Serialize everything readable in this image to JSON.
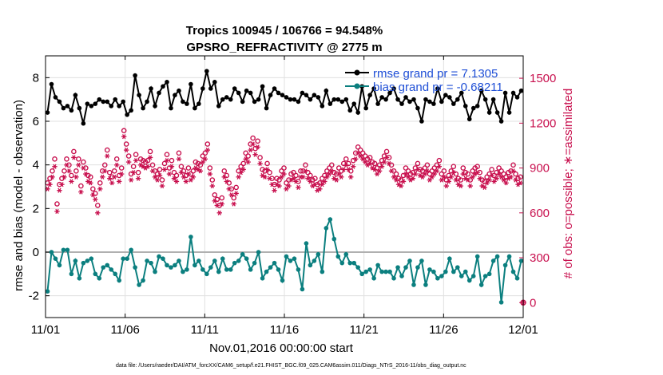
{
  "chart_data": {
    "type": "line",
    "title": "Tropics 100945 / 106766 = 94.548%",
    "subtitle": "GPSRO_REFRACTIVITY @ 2775 m",
    "xlabel": "Nov.01,2016 00:00:00 start",
    "ylabel": "rmse and bias (model - observation)",
    "y2label": "# of obs: o=possible; ∗=assimilated",
    "footnote": "data file: /Users/raeder/DAI/ATM_forcXX/CAM6_setup/f.e21.FHIST_BGC.f09_025.CAM6assim.011/Diags_NTrS_2016-11/obs_diag_output.nc",
    "xlim": [
      0,
      30
    ],
    "ylim": [
      -3,
      9
    ],
    "y2lim": [
      -100,
      1650
    ],
    "xticks": [
      0,
      5,
      10,
      15,
      20,
      25,
      30
    ],
    "xtick_labels": [
      "11/01",
      "11/06",
      "11/11",
      "11/16",
      "11/21",
      "11/26",
      "12/01"
    ],
    "yticks": [
      -2,
      0,
      2,
      4,
      6,
      8
    ],
    "ytick_labels": [
      "-2",
      "0",
      "2",
      "4",
      "6",
      "8"
    ],
    "y2ticks": [
      0,
      300,
      600,
      900,
      1200,
      1500
    ],
    "y2tick_labels": [
      "0",
      "300",
      "600",
      "900",
      "1200",
      "1500"
    ],
    "legend_position": "top-right",
    "colors": {
      "rmse": "#000000",
      "bias": "#0b7f7f",
      "obs": "#c8104e",
      "zero_line": "#b0b0b0",
      "grid": "#e0e0e0",
      "legend_text": "#1f4fd6"
    },
    "series": [
      {
        "name": "rmse grand pr = 7.1305",
        "axis": "left",
        "style": "line-marker",
        "values": [
          6.4,
          7.7,
          7.1,
          6.9,
          6.6,
          6.7,
          6.5,
          7.2,
          6.6,
          5.9,
          6.8,
          6.7,
          6.8,
          7.0,
          6.9,
          6.9,
          6.7,
          7.0,
          6.7,
          6.9,
          6.3,
          6.5,
          8.1,
          7.2,
          6.6,
          6.9,
          7.5,
          6.7,
          7.3,
          7.6,
          7.8,
          6.6,
          7.2,
          7.4,
          6.9,
          6.8,
          7.7,
          6.6,
          6.8,
          7.5,
          8.3,
          7.5,
          7.8,
          6.7,
          7.0,
          7.1,
          7.0,
          7.5,
          7.3,
          6.9,
          7.4,
          7.3,
          6.9,
          7.0,
          7.6,
          6.6,
          7.2,
          7.5,
          7.3,
          7.2,
          7.1,
          7.0,
          7.0,
          6.9,
          7.3,
          7.2,
          7.0,
          7.2,
          7.1,
          6.7,
          7.4,
          6.8,
          7.0,
          7.0,
          6.9,
          7.0,
          6.5,
          6.8,
          6.4,
          7.6,
          6.6,
          7.2,
          7.5,
          6.8,
          7.1,
          7.0,
          7.3,
          7.5,
          7.0,
          6.8,
          7.1,
          6.9,
          7.0,
          6.6,
          6.0,
          7.0,
          6.9,
          6.8,
          7.5,
          6.9,
          7.2,
          7.1,
          6.8,
          7.0,
          7.3,
          6.7,
          6.1,
          6.6,
          6.7,
          7.4,
          7.0,
          6.4,
          7.0,
          6.4,
          6.0,
          7.3,
          6.4,
          7.3,
          7.1,
          7.4,
          6.9,
          7.5,
          7.3,
          7.4,
          7.1,
          6.8,
          7.3,
          7.6,
          7.2,
          7.3,
          7.0,
          6.9,
          7.1,
          7.3,
          6.8,
          7.0,
          7.2,
          7.4,
          6.9,
          7.2,
          7.1,
          6.5,
          6.9,
          6.6,
          6.7,
          7.1,
          7.0,
          6.8,
          6.4,
          7.1,
          7.5,
          6.5,
          6.9,
          6.5,
          7.1,
          7.4,
          7.0,
          6.8,
          6.9,
          7.0,
          7.2,
          6.7,
          7.2,
          7.3,
          6.8,
          6.7,
          7.1,
          7.3,
          6.4,
          7.2,
          6.6,
          6.9,
          8.0,
          7.3,
          7.2,
          7.3,
          7.1,
          6.4,
          6.6,
          6.5,
          7.3,
          6.8,
          7.1,
          6.8,
          7.4,
          6.5,
          7.0,
          6.9,
          7.2,
          6.7,
          7.0,
          6.5,
          6.4,
          6.9,
          7.3,
          6.6,
          7.1,
          6.7,
          8.0,
          7.2,
          7.0,
          7.2,
          7.2,
          6.9,
          7.5,
          6.7,
          7.4,
          7.0,
          7.2,
          7.3,
          6.6,
          7.2,
          6.8,
          6.6,
          7.0,
          7.4,
          7.1,
          7.3,
          7.9,
          7.2
        ],
        "x_step": 0.25
      },
      {
        "name": "bias grand pr = -0.68211",
        "axis": "left",
        "style": "line-marker",
        "values": [
          -1.8,
          0.0,
          -0.3,
          -0.6,
          0.1,
          0.1,
          -1.0,
          -0.4,
          -1.2,
          -0.5,
          -0.4,
          -0.3,
          -1.0,
          -1.2,
          -0.7,
          -0.6,
          -0.8,
          -1.0,
          -1.3,
          -0.3,
          -0.3,
          0.1,
          -0.7,
          -1.5,
          -1.3,
          -0.4,
          -0.5,
          -0.9,
          -0.2,
          -0.3,
          -0.6,
          -0.7,
          -0.6,
          -0.4,
          -0.9,
          -0.8,
          0.7,
          -0.6,
          -0.4,
          -0.8,
          -1.0,
          -0.7,
          -0.4,
          -0.9,
          -0.3,
          -0.8,
          -0.8,
          -0.5,
          -0.4,
          -0.1,
          -0.3,
          -0.8,
          -0.5,
          0.0,
          -1.2,
          -0.9,
          -0.7,
          -0.5,
          -0.8,
          -1.3,
          -0.2,
          -0.4,
          -0.3,
          -0.8,
          -1.7,
          0.4,
          -0.6,
          -0.4,
          -0.1,
          -0.9,
          1.1,
          1.5,
          0.6,
          -0.2,
          -0.5,
          -0.1,
          -0.5,
          -0.5,
          -0.7,
          -1.0,
          -0.9,
          -0.8,
          -1.2,
          -0.6,
          -0.9,
          -0.9,
          -0.9,
          -1.2,
          -0.7,
          -1.1,
          -0.7,
          -0.4,
          -1.5,
          -0.7,
          -0.4,
          -1.5,
          -0.8,
          -0.9,
          -1.2,
          -1.1,
          -0.9,
          -0.3,
          -0.9,
          -0.7,
          -1.1,
          -0.9,
          -1.3,
          -1.1,
          -0.2,
          -1.5,
          -1.1,
          -1.0,
          -0.4,
          -0.2,
          -2.3,
          -0.6,
          -0.2,
          -0.9,
          -1.2,
          -0.4,
          -0.7,
          -0.8,
          -2.4,
          -0.6,
          -0.2,
          -0.4,
          -0.8,
          -0.5,
          -0.7,
          -0.9,
          -0.8,
          -1.5,
          -0.1,
          -0.6,
          -0.4,
          -0.8,
          -0.9,
          -0.7,
          -0.2,
          -1.2,
          -0.3,
          -0.4,
          -0.7,
          -0.6,
          -0.9,
          -0.4,
          -1.6,
          -0.6,
          -0.5,
          -0.4,
          -0.8,
          -0.6,
          -0.9,
          -1.2,
          -1.5,
          -1.0,
          -2.3,
          -1.2,
          -0.8,
          -1.5,
          -0.2,
          -0.8,
          -1.0,
          -0.5,
          -0.7,
          -0.3,
          -1.1,
          -0.9,
          -0.6,
          -0.7,
          -0.4,
          -0.5,
          -1.0,
          -0.3,
          -0.8,
          -0.5,
          -1.3,
          -1.0,
          -0.9,
          -1.0,
          -0.3,
          -0.7,
          -1.2,
          -0.4,
          -0.6,
          -0.9,
          -0.6,
          -1.5,
          -0.3,
          -0.1,
          -0.8,
          -0.9,
          0.2,
          -0.6,
          -0.3,
          -0.9,
          -1.0,
          -0.4,
          -0.4,
          -0.9,
          -0.1,
          -0.3,
          0.0,
          0.8,
          -0.3,
          -0.5,
          -0.2,
          -0.1,
          0.0,
          -0.6,
          -0.3,
          -0.6,
          -0.7,
          -0.9,
          -0.4,
          -0.8,
          -1.0,
          -0.5,
          -0.8,
          -0.9,
          -0.7,
          -0.1
        ],
        "x_step": 0.25
      },
      {
        "name": "obs possible",
        "axis": "right",
        "style": "marker-o",
        "x_step": 0.25,
        "values": [
          800,
          830,
          880,
          960,
          660,
          790,
          830,
          880,
          960,
          920,
          850,
          1010,
          880,
          960,
          780,
          940,
          900,
          850,
          840,
          760,
          730,
          650,
          800,
          880,
          920,
          1020,
          870,
          840,
          880,
          960,
          850,
          900,
          1150,
          1060,
          980,
          860,
          910,
          990,
          870,
          960,
          950,
          940,
          950,
          1010,
          920,
          880,
          860,
          890,
          820,
          930,
          990,
          900,
          950,
          870,
          850,
          1000,
          910,
          880,
          850,
          900,
          860,
          880,
          940,
          930,
          920,
          980,
          1000,
          1060,
          900,
          820,
          720,
          690,
          650,
          700,
          880,
          850,
          800,
          760,
          700,
          770,
          880,
          910,
          930,
          1000,
          980,
          1060,
          1100,
          1030,
          1080,
          970,
          890,
          880,
          930,
          870,
          830,
          790,
          830,
          820,
          880,
          900,
          800,
          820,
          860,
          870,
          850,
          810,
          880,
          880,
          920,
          870,
          850,
          820,
          830,
          790,
          800,
          830,
          850,
          880,
          900,
          920,
          870,
          860,
          900,
          880,
          930,
          960,
          930,
          880,
          950,
          1000,
          1040,
          1020,
          1000,
          980,
          960,
          970,
          940,
          930,
          900,
          920,
          950,
          980,
          1010,
          970,
          920,
          880,
          860,
          830,
          820,
          850,
          900,
          880,
          860,
          870,
          900,
          930,
          890,
          880,
          900,
          920,
          860,
          880,
          900,
          920,
          950,
          860,
          880,
          820,
          850,
          880,
          910,
          860,
          830,
          820,
          900,
          870,
          860,
          820,
          880,
          900,
          910,
          870,
          820,
          810,
          840,
          860,
          890,
          850,
          870,
          900,
          880,
          860,
          840,
          870,
          880,
          920,
          860,
          830,
          840,
          900,
          880,
          850,
          820,
          860,
          890,
          870,
          850,
          880,
          870,
          860,
          820,
          850,
          880,
          830,
          870,
          840,
          850
        ],
        "extra_point": {
          "x": 30.1,
          "y": 0
        }
      },
      {
        "name": "obs assimilated",
        "axis": "right",
        "style": "marker-star",
        "x_step": 0.25,
        "values": [
          760,
          790,
          840,
          910,
          610,
          750,
          790,
          840,
          920,
          880,
          810,
          970,
          840,
          920,
          740,
          900,
          860,
          810,
          800,
          720,
          690,
          600,
          760,
          840,
          880,
          980,
          830,
          800,
          840,
          920,
          810,
          860,
          1110,
          1020,
          940,
          820,
          870,
          950,
          830,
          920,
          910,
          900,
          910,
          970,
          880,
          840,
          820,
          850,
          780,
          890,
          950,
          860,
          910,
          830,
          810,
          960,
          870,
          840,
          810,
          860,
          820,
          840,
          900,
          890,
          880,
          940,
          960,
          1020,
          860,
          780,
          680,
          650,
          600,
          660,
          840,
          810,
          760,
          720,
          660,
          730,
          840,
          870,
          890,
          960,
          940,
          1020,
          1060,
          990,
          1040,
          930,
          850,
          840,
          890,
          830,
          790,
          750,
          790,
          780,
          840,
          860,
          760,
          780,
          820,
          830,
          810,
          770,
          840,
          840,
          880,
          830,
          810,
          780,
          790,
          750,
          760,
          790,
          810,
          840,
          860,
          880,
          830,
          820,
          860,
          840,
          890,
          920,
          890,
          840,
          910,
          960,
          1000,
          980,
          960,
          940,
          920,
          930,
          900,
          890,
          860,
          880,
          910,
          940,
          970,
          930,
          880,
          840,
          820,
          790,
          780,
          810,
          860,
          840,
          820,
          830,
          860,
          890,
          850,
          840,
          860,
          880,
          820,
          840,
          860,
          880,
          910,
          820,
          840,
          780,
          810,
          840,
          870,
          820,
          790,
          780,
          860,
          830,
          820,
          780,
          840,
          860,
          870,
          830,
          780,
          770,
          800,
          820,
          850,
          810,
          830,
          860,
          840,
          820,
          800,
          830,
          840,
          880,
          820,
          790,
          800,
          860,
          840,
          810,
          780,
          820,
          850,
          830,
          810,
          840,
          830,
          820,
          780,
          810,
          840,
          790,
          830,
          800,
          810
        ]
      }
    ]
  }
}
